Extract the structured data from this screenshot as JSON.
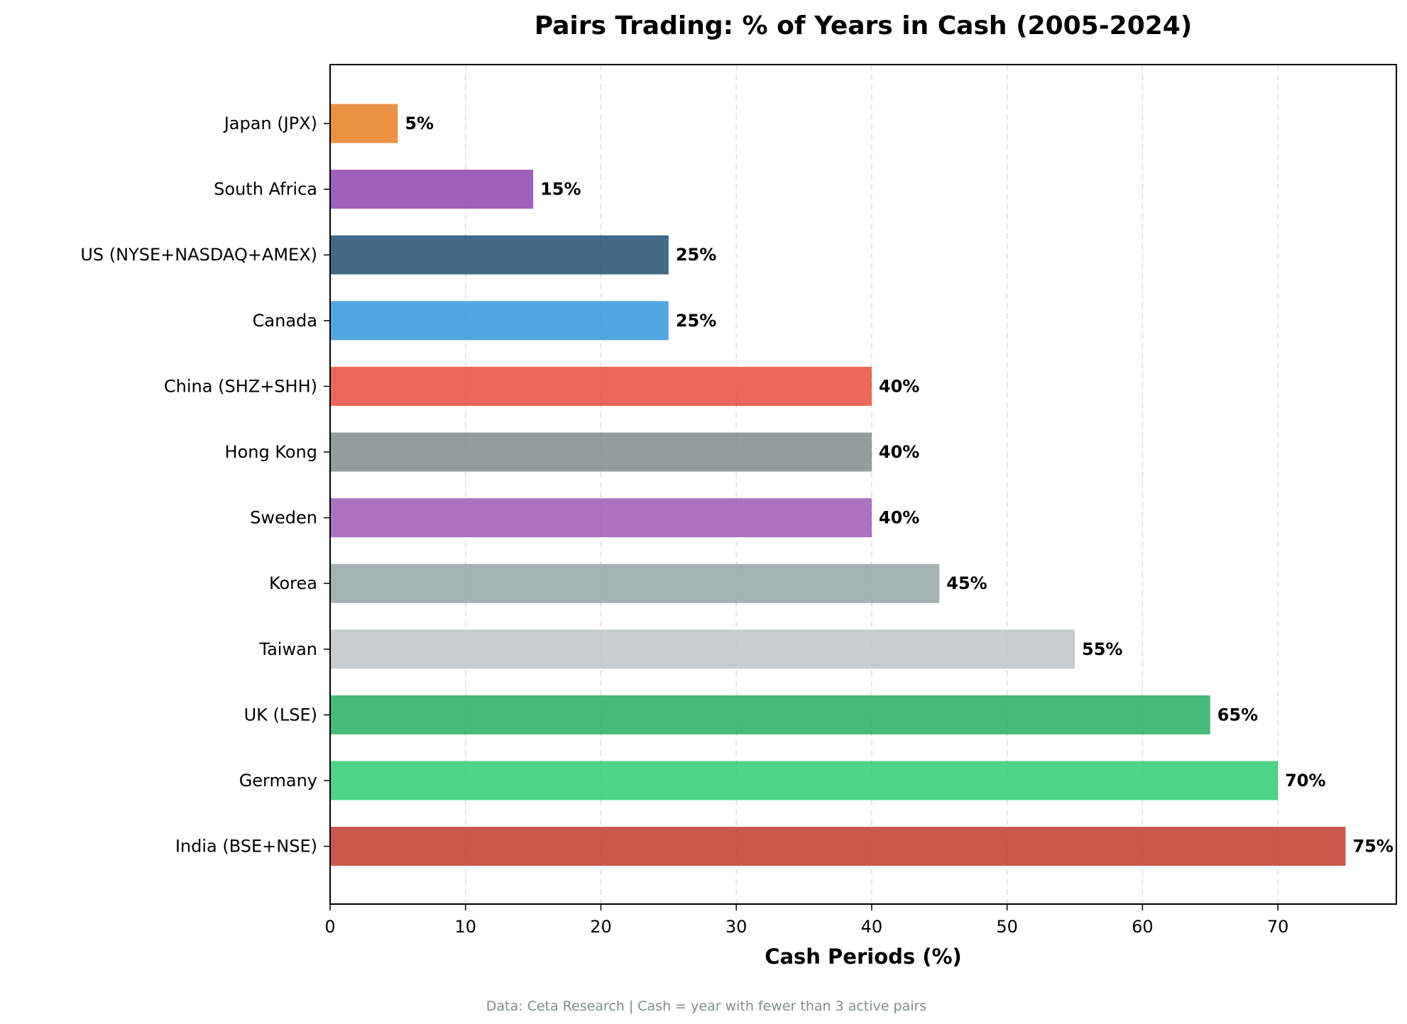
{
  "chart_data": {
    "type": "bar",
    "orientation": "horizontal",
    "title": "Pairs Trading: % of Years in Cash (2005-2024)",
    "xlabel": "Cash Periods (%)",
    "ylabel": "",
    "xlim": [
      0,
      78.75
    ],
    "xticks": [
      0,
      10,
      20,
      30,
      40,
      50,
      60,
      70
    ],
    "grid": "x-dashed",
    "categories": [
      "Japan (JPX)",
      "South Africa",
      "US (NYSE+NASDAQ+AMEX)",
      "Canada",
      "China (SHZ+SHH)",
      "Hong Kong",
      "Sweden",
      "Korea",
      "Taiwan",
      "UK (LSE)",
      "Germany",
      "India (BSE+NSE)"
    ],
    "values": [
      5,
      15,
      25,
      25,
      40,
      40,
      40,
      45,
      55,
      65,
      70,
      75
    ],
    "data_labels": [
      "5%",
      "15%",
      "25%",
      "25%",
      "40%",
      "40%",
      "40%",
      "45%",
      "55%",
      "65%",
      "70%",
      "75%"
    ],
    "colors": [
      "#e67e22",
      "#8e44ad",
      "#1f5070",
      "#3498db",
      "#e74c3c",
      "#7f8c8d",
      "#9b59b6",
      "#95a5a6",
      "#bdc3c7",
      "#27ae60",
      "#2ecc71",
      "#c0392b"
    ],
    "footnote": "Data: Ceta Research | Cash = year with fewer than 3 active pairs"
  }
}
